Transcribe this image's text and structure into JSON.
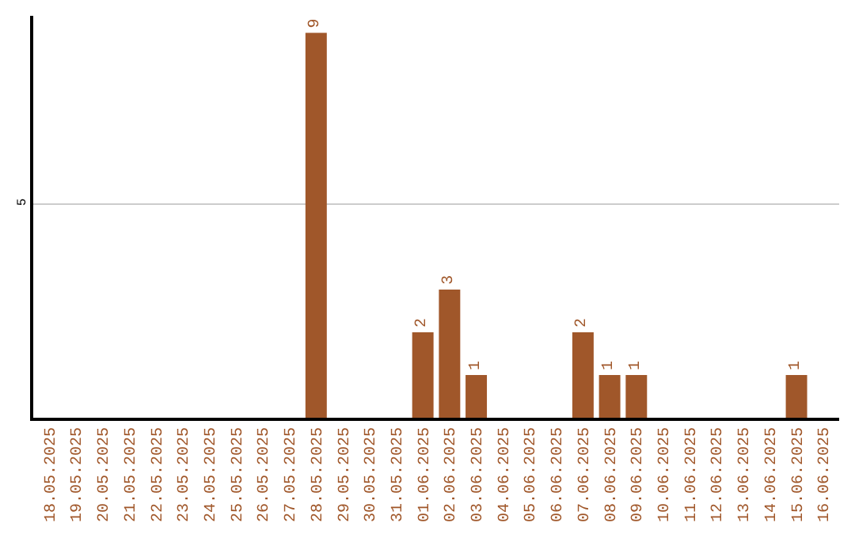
{
  "chart_data": {
    "type": "bar",
    "categories": [
      "18.05.2025",
      "19.05.2025",
      "20.05.2025",
      "21.05.2025",
      "22.05.2025",
      "23.05.2025",
      "24.05.2025",
      "25.05.2025",
      "26.05.2025",
      "27.05.2025",
      "28.05.2025",
      "29.05.2025",
      "30.05.2025",
      "31.05.2025",
      "01.06.2025",
      "02.06.2025",
      "03.06.2025",
      "04.06.2025",
      "05.06.2025",
      "06.06.2025",
      "07.06.2025",
      "08.06.2025",
      "09.06.2025",
      "10.06.2025",
      "11.06.2025",
      "12.06.2025",
      "13.06.2025",
      "14.06.2025",
      "15.06.2025",
      "16.06.2025"
    ],
    "values": [
      0,
      0,
      0,
      0,
      0,
      0,
      0,
      0,
      0,
      0,
      9,
      0,
      0,
      0,
      2,
      3,
      1,
      0,
      0,
      0,
      2,
      1,
      1,
      0,
      0,
      0,
      0,
      0,
      1,
      0
    ],
    "value_labels": [
      null,
      null,
      null,
      null,
      null,
      null,
      null,
      null,
      null,
      null,
      "9",
      null,
      null,
      null,
      "2",
      "3",
      "1",
      null,
      null,
      null,
      "2",
      "1",
      "1",
      null,
      null,
      null,
      null,
      null,
      "1",
      null
    ],
    "color": "#a0572a",
    "ylim": [
      0,
      9.4
    ],
    "yticks": [
      5
    ],
    "grid": "y",
    "legend": false
  }
}
